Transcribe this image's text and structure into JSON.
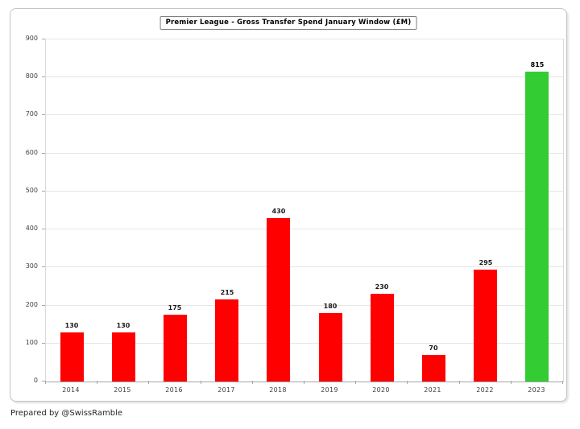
{
  "chart_data": {
    "type": "bar",
    "title": "Premier League - Gross Transfer Spend January Window (£M)",
    "categories": [
      "2014",
      "2015",
      "2016",
      "2017",
      "2018",
      "2019",
      "2020",
      "2021",
      "2022",
      "2023"
    ],
    "values": [
      130,
      130,
      175,
      215,
      430,
      180,
      230,
      70,
      295,
      815
    ],
    "xlabel": "",
    "ylabel": "",
    "ylim": [
      0,
      900
    ],
    "ytick_step": 100,
    "grid": "horizontal",
    "legend_position": "none",
    "bar_color": "#ff0000",
    "highlight_index": 9,
    "highlight_color": "#33cc33"
  },
  "credit": "Prepared by @SwissRamble"
}
